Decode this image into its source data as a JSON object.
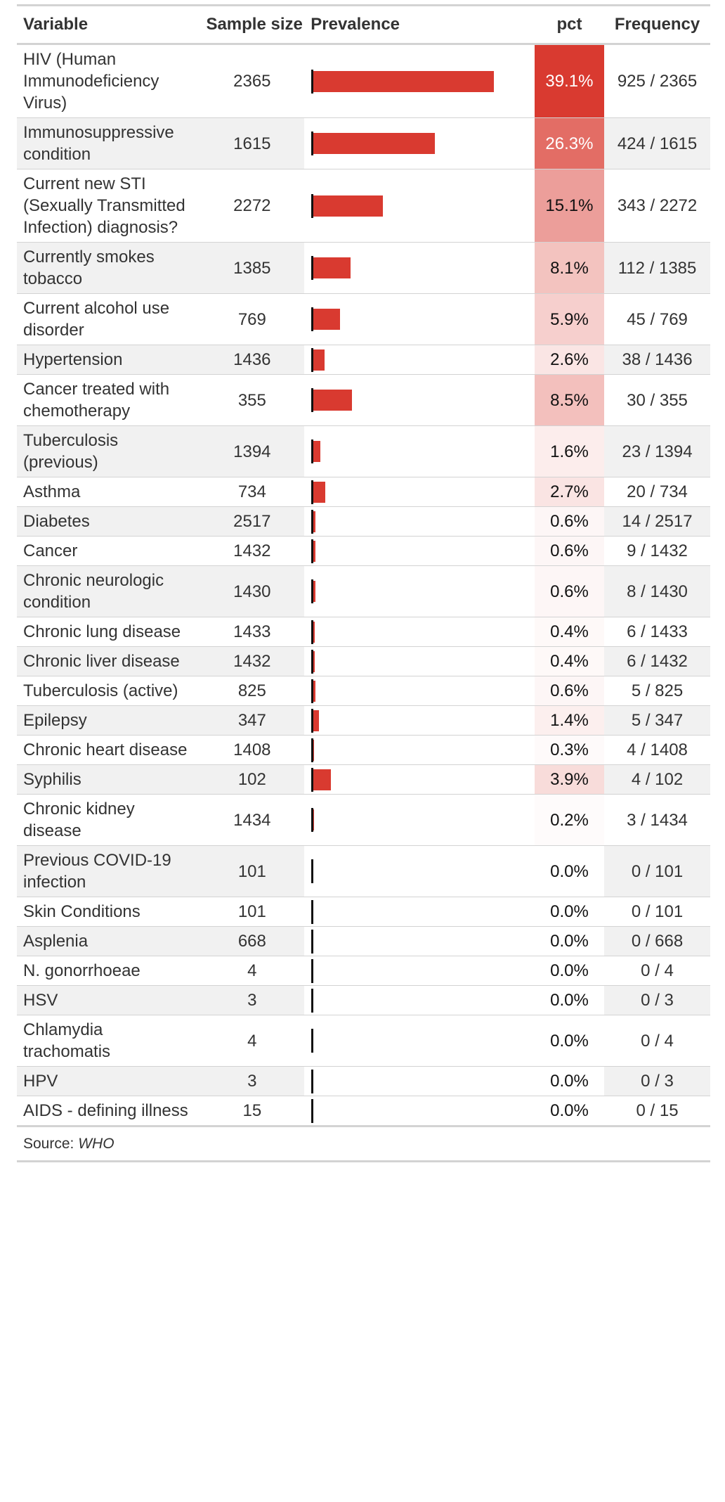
{
  "table": {
    "headers": {
      "variable": "Variable",
      "sample_size": "Sample size",
      "prevalence": "Prevalence",
      "pct": "pct",
      "frequency": "Frequency"
    },
    "source_label": "Source:",
    "source_value": "WHO",
    "pct_color_scale": {
      "low": "#ffffff",
      "high": "#d93a30"
    },
    "bar_color": "#d93a30"
  },
  "chart_data": {
    "type": "table",
    "columns": [
      "Variable",
      "Sample size",
      "Prevalence",
      "pct",
      "Frequency"
    ],
    "rows": [
      {
        "variable": "HIV (Human Immunodeficiency Virus)",
        "n": 2365,
        "prevalence": 0.391,
        "pct": "39.1%",
        "pct_value": 39.1,
        "freq": "925 / 2365"
      },
      {
        "variable": "Immunosuppressive condition",
        "n": 1615,
        "prevalence": 0.263,
        "pct": "26.3%",
        "pct_value": 26.3,
        "freq": "424 / 1615"
      },
      {
        "variable": "Current new STI (Sexually Transmitted Infection) diagnosis?",
        "n": 2272,
        "prevalence": 0.151,
        "pct": "15.1%",
        "pct_value": 15.1,
        "freq": "343 / 2272"
      },
      {
        "variable": "Currently smokes tobacco",
        "n": 1385,
        "prevalence": 0.081,
        "pct": "8.1%",
        "pct_value": 8.1,
        "freq": "112 / 1385"
      },
      {
        "variable": "Current alcohol use disorder",
        "n": 769,
        "prevalence": 0.059,
        "pct": "5.9%",
        "pct_value": 5.9,
        "freq": "45 / 769"
      },
      {
        "variable": "Hypertension",
        "n": 1436,
        "prevalence": 0.026,
        "pct": "2.6%",
        "pct_value": 2.6,
        "freq": "38 / 1436"
      },
      {
        "variable": "Cancer treated with chemotherapy",
        "n": 355,
        "prevalence": 0.085,
        "pct": "8.5%",
        "pct_value": 8.5,
        "freq": "30 / 355"
      },
      {
        "variable": "Tuberculosis (previous)",
        "n": 1394,
        "prevalence": 0.016,
        "pct": "1.6%",
        "pct_value": 1.6,
        "freq": "23 / 1394"
      },
      {
        "variable": "Asthma",
        "n": 734,
        "prevalence": 0.027,
        "pct": "2.7%",
        "pct_value": 2.7,
        "freq": "20 / 734"
      },
      {
        "variable": "Diabetes",
        "n": 2517,
        "prevalence": 0.006,
        "pct": "0.6%",
        "pct_value": 0.6,
        "freq": "14 / 2517"
      },
      {
        "variable": "Cancer",
        "n": 1432,
        "prevalence": 0.006,
        "pct": "0.6%",
        "pct_value": 0.6,
        "freq": "9 / 1432"
      },
      {
        "variable": "Chronic neurologic condition",
        "n": 1430,
        "prevalence": 0.006,
        "pct": "0.6%",
        "pct_value": 0.6,
        "freq": "8 / 1430"
      },
      {
        "variable": "Chronic lung disease",
        "n": 1433,
        "prevalence": 0.004,
        "pct": "0.4%",
        "pct_value": 0.4,
        "freq": "6 / 1433"
      },
      {
        "variable": "Chronic liver disease",
        "n": 1432,
        "prevalence": 0.004,
        "pct": "0.4%",
        "pct_value": 0.4,
        "freq": "6 / 1432"
      },
      {
        "variable": "Tuberculosis (active)",
        "n": 825,
        "prevalence": 0.006,
        "pct": "0.6%",
        "pct_value": 0.6,
        "freq": "5 / 825"
      },
      {
        "variable": "Epilepsy",
        "n": 347,
        "prevalence": 0.014,
        "pct": "1.4%",
        "pct_value": 1.4,
        "freq": "5 / 347"
      },
      {
        "variable": "Chronic heart disease",
        "n": 1408,
        "prevalence": 0.003,
        "pct": "0.3%",
        "pct_value": 0.3,
        "freq": "4 / 1408"
      },
      {
        "variable": "Syphilis",
        "n": 102,
        "prevalence": 0.039,
        "pct": "3.9%",
        "pct_value": 3.9,
        "freq": "4 / 102"
      },
      {
        "variable": "Chronic kidney disease",
        "n": 1434,
        "prevalence": 0.002,
        "pct": "0.2%",
        "pct_value": 0.2,
        "freq": "3 / 1434"
      },
      {
        "variable": "Previous COVID-19 infection",
        "n": 101,
        "prevalence": 0.0,
        "pct": "0.0%",
        "pct_value": 0.0,
        "freq": "0 / 101"
      },
      {
        "variable": "Skin Conditions",
        "n": 101,
        "prevalence": 0.0,
        "pct": "0.0%",
        "pct_value": 0.0,
        "freq": "0 / 101"
      },
      {
        "variable": "Asplenia",
        "n": 668,
        "prevalence": 0.0,
        "pct": "0.0%",
        "pct_value": 0.0,
        "freq": "0 / 668"
      },
      {
        "variable": "N. gonorrhoeae",
        "n": 4,
        "prevalence": 0.0,
        "pct": "0.0%",
        "pct_value": 0.0,
        "freq": "0 / 4"
      },
      {
        "variable": "HSV",
        "n": 3,
        "prevalence": 0.0,
        "pct": "0.0%",
        "pct_value": 0.0,
        "freq": "0 / 3"
      },
      {
        "variable": "Chlamydia trachomatis",
        "n": 4,
        "prevalence": 0.0,
        "pct": "0.0%",
        "pct_value": 0.0,
        "freq": "0 / 4"
      },
      {
        "variable": "HPV",
        "n": 3,
        "prevalence": 0.0,
        "pct": "0.0%",
        "pct_value": 0.0,
        "freq": "0 / 3"
      },
      {
        "variable": "AIDS - defining illness",
        "n": 15,
        "prevalence": 0.0,
        "pct": "0.0%",
        "pct_value": 0.0,
        "freq": "0 / 15"
      }
    ]
  }
}
